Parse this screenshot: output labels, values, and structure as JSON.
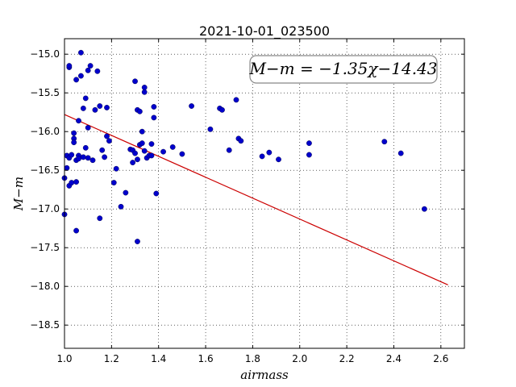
{
  "chart_data": {
    "type": "scatter",
    "title": "2021-10-01_023500",
    "xlabel": "airmass",
    "ylabel": "M−m",
    "xlim": [
      1.0,
      2.7
    ],
    "ylim": [
      -18.8,
      -14.8
    ],
    "y_inverted": true,
    "grid": true,
    "xticks": [
      1.0,
      1.2,
      1.4,
      1.6,
      1.8,
      2.0,
      2.2,
      2.4,
      2.6
    ],
    "xtick_labels": [
      "1.0",
      "1.2",
      "1.4",
      "1.6",
      "1.8",
      "2.0",
      "2.2",
      "2.4",
      "2.6"
    ],
    "yticks": [
      -15.0,
      -15.5,
      -16.0,
      -16.5,
      -17.0,
      -17.5,
      -18.0,
      -18.5
    ],
    "ytick_labels": [
      "−15.0",
      "−15.5",
      "−16.0",
      "−16.5",
      "−17.0",
      "−17.5",
      "−18.0",
      "−18.5"
    ],
    "annotation": "M−m = −1.35χ−14.43",
    "point_color": "#0000cc",
    "fit_color": "#cc0000",
    "fit_line": {
      "slope": -1.35,
      "intercept": -14.43,
      "x_range": [
        1.0,
        2.63
      ]
    },
    "points": [
      [
        1.0,
        -16.6
      ],
      [
        1.0,
        -17.07
      ],
      [
        1.01,
        -16.47
      ],
      [
        1.01,
        -16.31
      ],
      [
        1.02,
        -15.17
      ],
      [
        1.02,
        -15.15
      ],
      [
        1.02,
        -16.34
      ],
      [
        1.02,
        -16.7
      ],
      [
        1.03,
        -16.66
      ],
      [
        1.03,
        -16.3
      ],
      [
        1.04,
        -16.02
      ],
      [
        1.04,
        -16.09
      ],
      [
        1.04,
        -16.14
      ],
      [
        1.05,
        -15.33
      ],
      [
        1.05,
        -16.37
      ],
      [
        1.05,
        -16.65
      ],
      [
        1.05,
        -17.28
      ],
      [
        1.06,
        -15.86
      ],
      [
        1.06,
        -16.31
      ],
      [
        1.06,
        -16.35
      ],
      [
        1.07,
        -14.98
      ],
      [
        1.07,
        -15.28
      ],
      [
        1.08,
        -15.7
      ],
      [
        1.08,
        -16.33
      ],
      [
        1.09,
        -15.57
      ],
      [
        1.09,
        -16.21
      ],
      [
        1.1,
        -15.95
      ],
      [
        1.1,
        -16.34
      ],
      [
        1.1,
        -15.21
      ],
      [
        1.11,
        -15.15
      ],
      [
        1.12,
        -16.37
      ],
      [
        1.13,
        -15.72
      ],
      [
        1.14,
        -15.22
      ],
      [
        1.15,
        -15.67
      ],
      [
        1.16,
        -16.24
      ],
      [
        1.17,
        -16.33
      ],
      [
        1.18,
        -15.69
      ],
      [
        1.18,
        -16.06
      ],
      [
        1.19,
        -16.12
      ],
      [
        1.21,
        -16.66
      ],
      [
        1.22,
        -16.48
      ],
      [
        1.24,
        -16.97
      ],
      [
        1.15,
        -17.12
      ],
      [
        1.26,
        -16.79
      ],
      [
        1.28,
        -16.23
      ],
      [
        1.29,
        -16.24
      ],
      [
        1.29,
        -16.4
      ],
      [
        1.3,
        -15.35
      ],
      [
        1.3,
        -16.28
      ],
      [
        1.31,
        -15.72
      ],
      [
        1.31,
        -16.36
      ],
      [
        1.31,
        -17.42
      ],
      [
        1.32,
        -15.74
      ],
      [
        1.32,
        -16.17
      ],
      [
        1.33,
        -16.15
      ],
      [
        1.33,
        -16.0
      ],
      [
        1.34,
        -15.43
      ],
      [
        1.34,
        -15.49
      ],
      [
        1.34,
        -16.25
      ],
      [
        1.35,
        -16.34
      ],
      [
        1.36,
        -16.31
      ],
      [
        1.37,
        -16.31
      ],
      [
        1.37,
        -16.16
      ],
      [
        1.38,
        -15.68
      ],
      [
        1.38,
        -15.82
      ],
      [
        1.39,
        -16.8
      ],
      [
        1.42,
        -16.26
      ],
      [
        1.46,
        -16.2
      ],
      [
        1.5,
        -16.29
      ],
      [
        1.54,
        -15.67
      ],
      [
        1.62,
        -15.97
      ],
      [
        1.66,
        -15.7
      ],
      [
        1.67,
        -15.72
      ],
      [
        1.7,
        -16.24
      ],
      [
        1.73,
        -15.59
      ],
      [
        1.74,
        -16.09
      ],
      [
        1.75,
        -16.12
      ],
      [
        1.84,
        -16.32
      ],
      [
        1.87,
        -16.27
      ],
      [
        1.91,
        -16.36
      ],
      [
        2.04,
        -16.15
      ],
      [
        2.04,
        -16.3
      ],
      [
        2.36,
        -16.13
      ],
      [
        2.43,
        -16.28
      ],
      [
        2.53,
        -17.0
      ]
    ]
  }
}
